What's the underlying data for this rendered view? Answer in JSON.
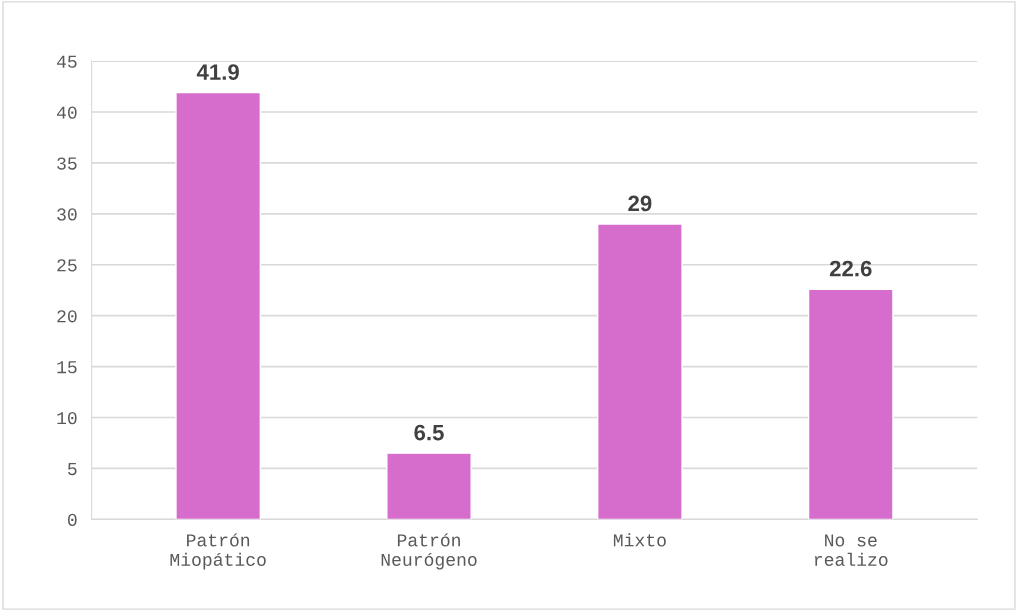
{
  "chart_data": {
    "type": "bar",
    "categories": [
      "Patrón\nMiopático",
      "Patrón\nNeurógeno",
      "Mixto",
      "No se\nrealizo"
    ],
    "values": [
      41.9,
      6.5,
      29,
      22.6
    ],
    "color": "#d66ccc",
    "ylim": [
      0,
      45
    ],
    "yticks": [
      0,
      5,
      10,
      15,
      20,
      25,
      30,
      35,
      40,
      45
    ],
    "grid": "y",
    "data_labels": true
  }
}
